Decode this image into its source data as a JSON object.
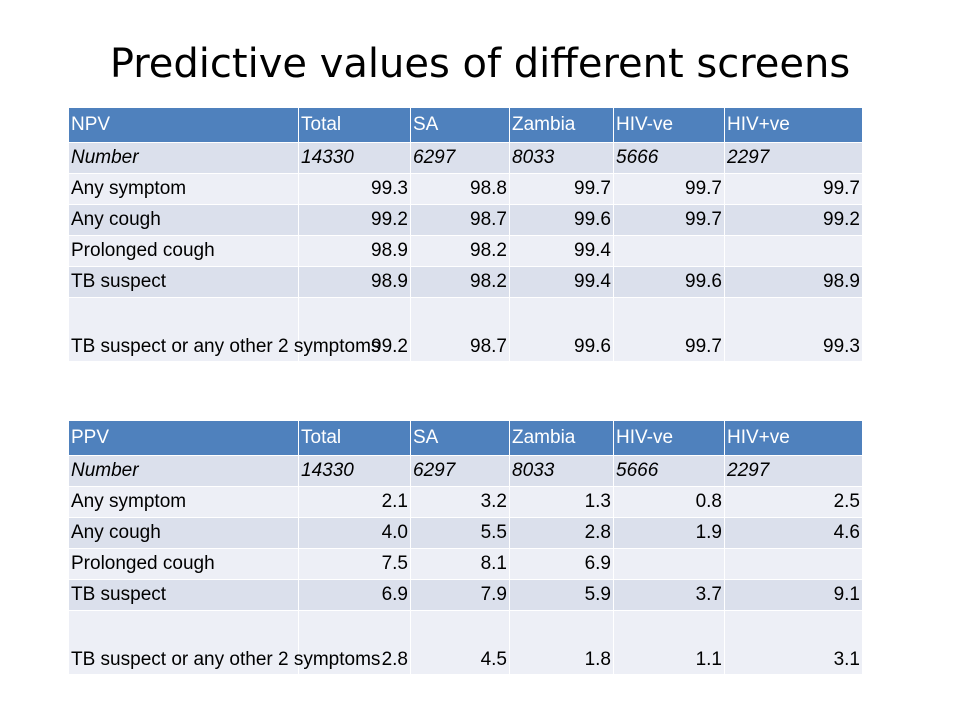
{
  "title": "Predictive values of different screens",
  "colors": {
    "header_bg": "#4f81bd",
    "band_dark": "#dbe0ec",
    "band_light": "#edeff6"
  },
  "npv_table": {
    "headers": [
      "NPV",
      "Total",
      "SA",
      "Zambia",
      "HIV-ve",
      "HIV+ve"
    ],
    "rows": [
      [
        "Number",
        "14330",
        "6297",
        "8033",
        "5666",
        "2297"
      ],
      [
        "Any symptom",
        "99.3",
        "98.8",
        "99.7",
        "99.7",
        "99.7"
      ],
      [
        "Any cough",
        "99.2",
        "98.7",
        "99.6",
        "99.7",
        "99.2"
      ],
      [
        "Prolonged cough",
        "98.9",
        "98.2",
        "99.4",
        "",
        ""
      ],
      [
        "TB suspect",
        "98.9",
        "98.2",
        "99.4",
        "99.6",
        "98.9"
      ],
      [
        "TB suspect or any other 2 symptoms",
        "99.2",
        "98.7",
        "99.6",
        "99.7",
        "99.3"
      ]
    ]
  },
  "ppv_table": {
    "headers": [
      "PPV",
      "Total",
      "SA",
      "Zambia",
      "HIV-ve",
      "HIV+ve"
    ],
    "rows": [
      [
        "Number",
        "14330",
        "6297",
        "8033",
        "5666",
        "2297"
      ],
      [
        "Any symptom",
        "2.1",
        "3.2",
        "1.3",
        "0.8",
        "2.5"
      ],
      [
        "Any cough",
        "4.0",
        "5.5",
        "2.8",
        "1.9",
        "4.6"
      ],
      [
        "Prolonged cough",
        "7.5",
        "8.1",
        "6.9",
        "",
        ""
      ],
      [
        "TB suspect",
        "6.9",
        "7.9",
        "5.9",
        "3.7",
        "9.1"
      ],
      [
        "TB suspect or any other 2 symptoms",
        "2.8",
        "4.5",
        "1.8",
        "1.1",
        "3.1"
      ]
    ]
  }
}
